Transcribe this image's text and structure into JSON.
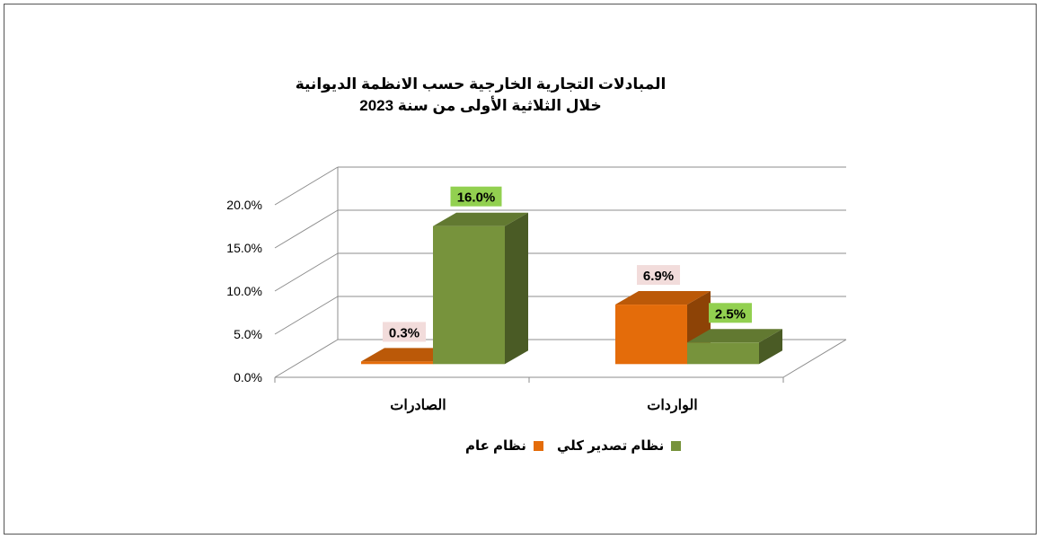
{
  "chart_data": {
    "type": "bar",
    "title": "المبادلات التجارية الخارجية حسب الانظمة الديوانية",
    "subtitle": "خلال الثلاثية الأولى من سنة 2023",
    "categories": [
      "الصادرات",
      "الواردات"
    ],
    "series": [
      {
        "name": "نظام عام",
        "values": [
          0.3,
          6.9
        ],
        "labels": [
          "0.3%",
          "6.9%"
        ],
        "color": "#e46c0a",
        "label_bg": "#f2dcdb"
      },
      {
        "name": "نظام تصدير كلي",
        "values": [
          16.0,
          2.5
        ],
        "labels": [
          "16.0%",
          "2.5%"
        ],
        "color": "#77933c",
        "label_bg": "#92d050"
      }
    ],
    "y_ticks": [
      "0.0%",
      "5.0%",
      "10.0%",
      "15.0%",
      "20.0%"
    ],
    "ylim": [
      0,
      20
    ],
    "grid": true,
    "legend_position": "bottom",
    "style": "3d-clustered-column"
  }
}
